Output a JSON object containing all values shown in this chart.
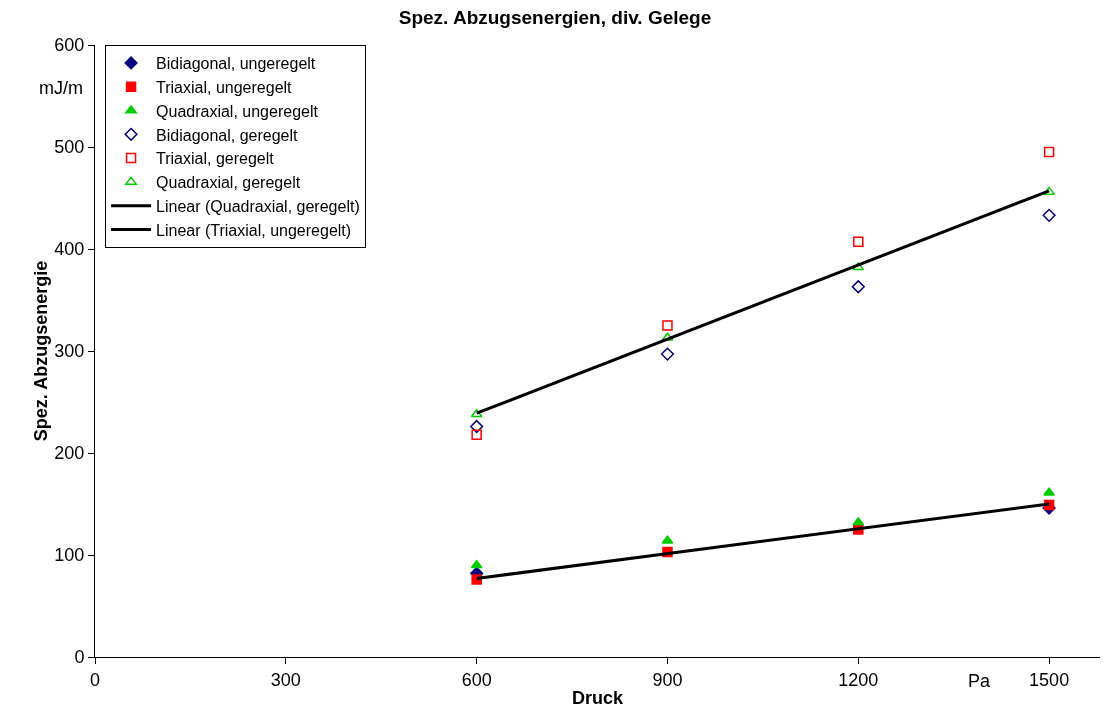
{
  "chart_data": {
    "type": "scatter",
    "title": "Spez. Abzugsenergien, div. Gelege",
    "xlabel": "Druck",
    "ylabel": "Spez. Abzugsenergie",
    "annotations": [
      "mJ/m",
      "Pa"
    ],
    "xlim": [
      0,
      1580
    ],
    "xticks": [
      0,
      300,
      600,
      900,
      1200,
      1500
    ],
    "ylim": [
      0,
      600
    ],
    "yticks": [
      0,
      100,
      200,
      300,
      400,
      500,
      600
    ],
    "grid": false,
    "legend": "top left",
    "series": [
      {
        "name": "Bidiagonal, ungeregelt",
        "color": "#000080",
        "marker": "diamond",
        "x": [
          600,
          900,
          1200,
          1500
        ],
        "values": [
          82,
          null,
          null,
          146
        ]
      },
      {
        "name": "Triaxial, ungeregelt",
        "color": "#ff0000",
        "marker": "square",
        "x": [
          600,
          900,
          1200,
          1500
        ],
        "values": [
          76,
          103,
          125,
          149
        ]
      },
      {
        "name": "Quadraxial, ungeregelt",
        "color": "#00cc00",
        "marker": "triangle",
        "x": [
          600,
          900,
          1200,
          1500
        ],
        "values": [
          90,
          114,
          132,
          161
        ]
      },
      {
        "name": "Bidiagonal, geregelt",
        "color": "#000080",
        "marker": "diamond-open",
        "x": [
          600,
          900,
          1200,
          1500
        ],
        "values": [
          226,
          297,
          363,
          433
        ]
      },
      {
        "name": "Triaxial, geregelt",
        "color": "#ff0000",
        "marker": "square-open",
        "x": [
          600,
          900,
          1200,
          1500
        ],
        "values": [
          218,
          325,
          407,
          495
        ]
      },
      {
        "name": "Quadraxial, geregelt",
        "color": "#00cc00",
        "marker": "triangle-open",
        "x": [
          600,
          900,
          1200,
          1500
        ],
        "values": [
          238,
          313,
          382,
          456
        ]
      },
      {
        "name": "Linear (Quadraxial, geregelt)",
        "type": "line",
        "color": "#000000",
        "marker": "none",
        "line_style": "solid",
        "x": [
          600,
          1500
        ],
        "values": [
          239,
          457
        ]
      },
      {
        "name": "Linear (Triaxial, ungeregelt)",
        "type": "line",
        "color": "#000000",
        "marker": "none",
        "line_style": "solid",
        "x": [
          600,
          1500
        ],
        "values": [
          77,
          150
        ]
      }
    ]
  }
}
